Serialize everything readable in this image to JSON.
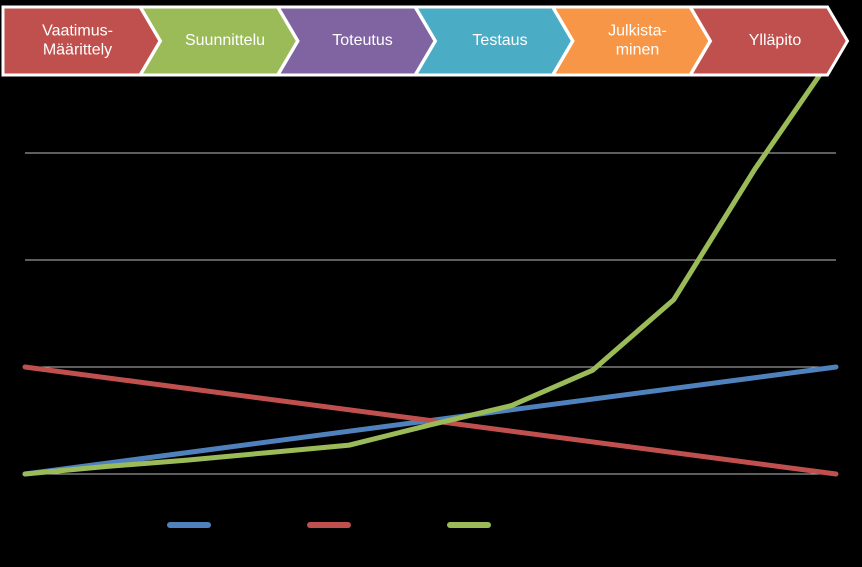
{
  "phases": [
    {
      "lines": [
        "Vaatimus-",
        "Määrittely"
      ],
      "color": "#c0504d"
    },
    {
      "lines": [
        "Suunnittelu"
      ],
      "color": "#9bbb59"
    },
    {
      "lines": [
        "Toteutus"
      ],
      "color": "#8064a2"
    },
    {
      "lines": [
        "Testaus"
      ],
      "color": "#4bacc6"
    },
    {
      "lines": [
        "Julkista-",
        "minen"
      ],
      "color": "#f79646"
    },
    {
      "lines": [
        "Ylläpito"
      ],
      "color": "#c0504d"
    }
  ],
  "chart_data": {
    "type": "line",
    "series": [
      {
        "color": "#4f81bd",
        "x": [
          0,
          10
        ],
        "values": [
          0,
          1
        ]
      },
      {
        "color": "#c0504d",
        "x": [
          0,
          10
        ],
        "values": [
          1,
          0
        ]
      },
      {
        "color": "#9bbb59",
        "x": [
          0,
          1,
          2,
          3,
          4,
          5,
          6,
          7,
          8,
          9,
          9.8
        ],
        "values": [
          0,
          0.07,
          0.13,
          0.2,
          0.27,
          0.46,
          0.64,
          0.97,
          1.63,
          2.85,
          3.73
        ]
      }
    ],
    "xlim": [
      0,
      10
    ],
    "ylim": [
      0,
      4
    ],
    "yticks": [
      0,
      1,
      2,
      3
    ],
    "grid": true
  }
}
